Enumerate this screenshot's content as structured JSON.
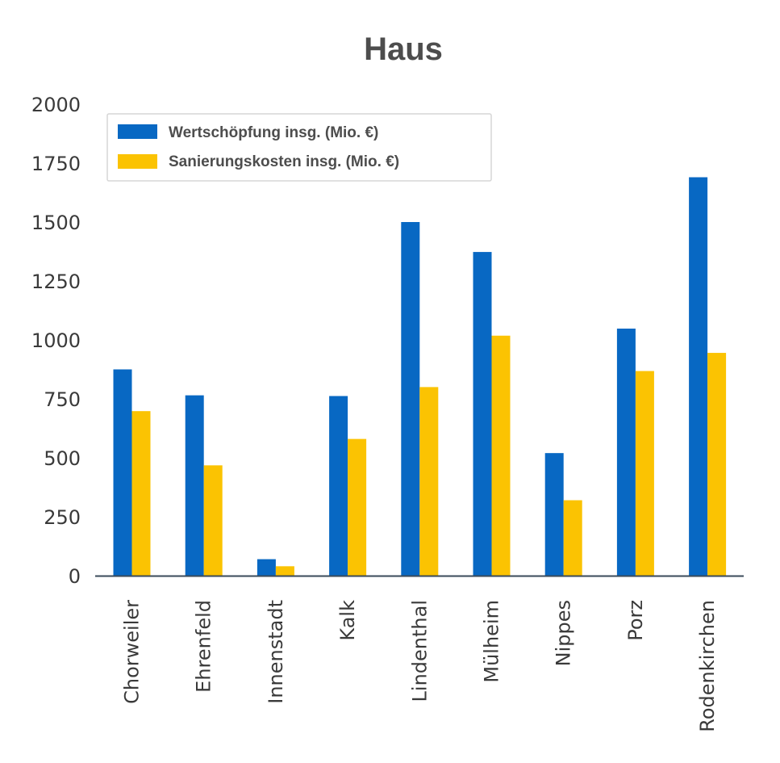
{
  "colors": {
    "series_0": "#0868c3",
    "series_1": "#fbc302",
    "axis": "#3a4a5a"
  },
  "chart_data": {
    "type": "bar",
    "title": "Haus",
    "xlabel": "",
    "ylabel": "",
    "ylim": [
      0,
      2000
    ],
    "yticks": [
      0,
      250,
      500,
      750,
      1000,
      1250,
      1500,
      1750,
      2000
    ],
    "grid": false,
    "legend_position": "top-left",
    "categories": [
      "Chorweiler",
      "Ehrenfeld",
      "Innenstadt",
      "Kalk",
      "Lindenthal",
      "Mülheim",
      "Nippes",
      "Porz",
      "Rodenkirchen"
    ],
    "series": [
      {
        "name": "Wertschöpfung insg. (Mio. €)",
        "values": [
          875,
          765,
          70,
          762,
          1500,
          1373,
          520,
          1048,
          1690
        ]
      },
      {
        "name": "Sanierungskosten insg. (Mio. €)",
        "values": [
          698,
          468,
          40,
          580,
          800,
          1018,
          320,
          868,
          945
        ]
      }
    ]
  }
}
